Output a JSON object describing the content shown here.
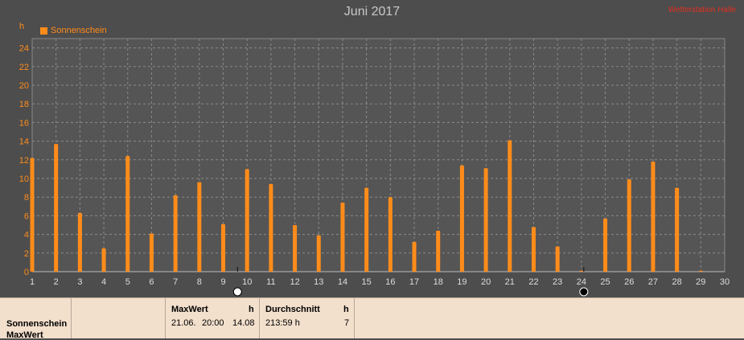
{
  "chart_data": {
    "type": "bar",
    "title": "Juni 2017",
    "watermark": "Wetterstation Halle",
    "ylabel": "h",
    "ylim": [
      0,
      25
    ],
    "yticks": [
      0,
      2,
      4,
      6,
      8,
      10,
      12,
      14,
      16,
      18,
      20,
      22,
      24
    ],
    "xlim": [
      1,
      30
    ],
    "categories": [
      1,
      2,
      3,
      4,
      5,
      6,
      7,
      8,
      9,
      10,
      11,
      12,
      13,
      14,
      15,
      16,
      17,
      18,
      19,
      20,
      21,
      22,
      23,
      24,
      25,
      26,
      27,
      28,
      29,
      30
    ],
    "series": [
      {
        "name": "Sonnenschein",
        "color": "#ff8c1a",
        "values": [
          12.2,
          13.7,
          6.3,
          2.5,
          12.4,
          4.1,
          8.2,
          9.6,
          5.1,
          11.0,
          9.4,
          5.0,
          3.9,
          7.4,
          9.0,
          8.0,
          3.2,
          4.4,
          11.4,
          11.1,
          14.1,
          4.8,
          2.7,
          0.1,
          5.7,
          9.9,
          11.8,
          9.0,
          0.1,
          null
        ]
      }
    ],
    "grid": true,
    "legend": "top-left",
    "markers": [
      {
        "x": 9.6,
        "icon": "full-moon-icon"
      },
      {
        "x": 24.1,
        "icon": "new-moon-icon"
      }
    ]
  },
  "stats": {
    "row_labels": [
      "Sonnenschein",
      "MaxWert"
    ],
    "max": {
      "header": "MaxWert",
      "unit": "h",
      "date": "21.06.",
      "time": "20:00",
      "value": "14.08"
    },
    "avg": {
      "header": "Durchschnitt",
      "unit": "h",
      "value": "213:59 h",
      "count": "7"
    }
  }
}
